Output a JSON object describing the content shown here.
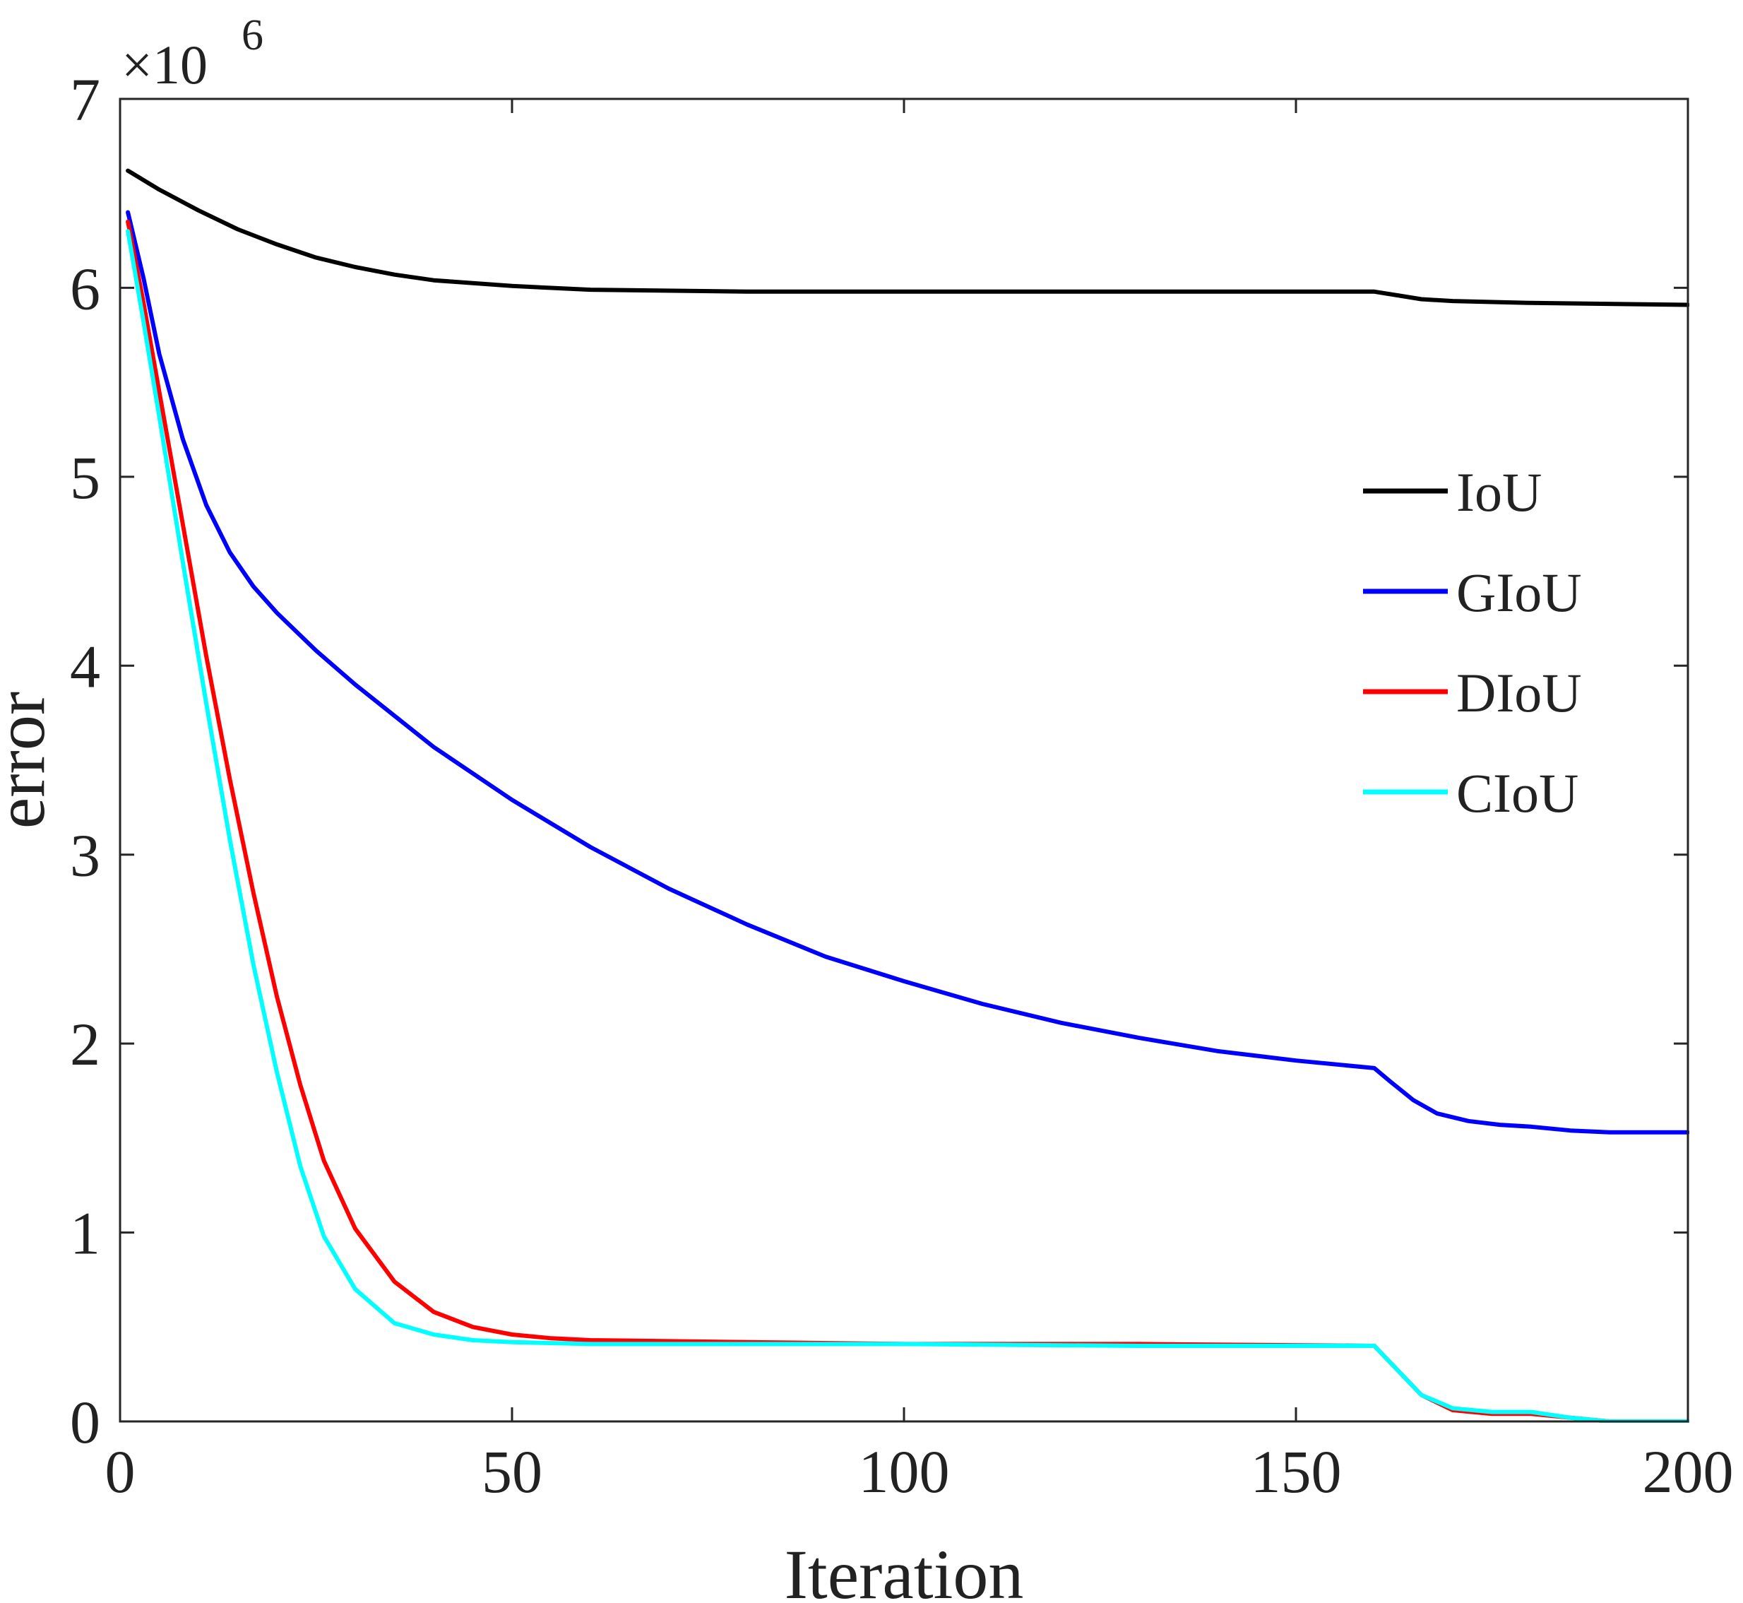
{
  "chart_data": {
    "type": "line",
    "title": "",
    "xlabel": "Iteration",
    "ylabel": "error",
    "y_multiplier": {
      "prefix": "×10",
      "exponent": "6"
    },
    "xlim": [
      0,
      200
    ],
    "ylim": [
      0,
      7
    ],
    "x_ticks": [
      0,
      50,
      100,
      150,
      200
    ],
    "y_ticks": [
      0,
      1,
      2,
      3,
      4,
      5,
      6,
      7
    ],
    "grid": false,
    "legend_position": "right",
    "series": [
      {
        "name": "IoU",
        "color": "#000000",
        "points": [
          [
            1,
            6.62
          ],
          [
            5,
            6.52
          ],
          [
            10,
            6.41
          ],
          [
            15,
            6.31
          ],
          [
            20,
            6.23
          ],
          [
            25,
            6.16
          ],
          [
            30,
            6.11
          ],
          [
            35,
            6.07
          ],
          [
            40,
            6.04
          ],
          [
            50,
            6.01
          ],
          [
            60,
            5.99
          ],
          [
            80,
            5.98
          ],
          [
            100,
            5.98
          ],
          [
            130,
            5.98
          ],
          [
            160,
            5.98
          ],
          [
            163,
            5.96
          ],
          [
            166,
            5.94
          ],
          [
            170,
            5.93
          ],
          [
            180,
            5.92
          ],
          [
            200,
            5.91
          ]
        ]
      },
      {
        "name": "GIoU",
        "color": "#0000ff",
        "points": [
          [
            1,
            6.4
          ],
          [
            3,
            6.05
          ],
          [
            5,
            5.65
          ],
          [
            8,
            5.2
          ],
          [
            11,
            4.85
          ],
          [
            14,
            4.6
          ],
          [
            17,
            4.42
          ],
          [
            20,
            4.28
          ],
          [
            25,
            4.08
          ],
          [
            30,
            3.9
          ],
          [
            40,
            3.57
          ],
          [
            50,
            3.29
          ],
          [
            60,
            3.04
          ],
          [
            70,
            2.82
          ],
          [
            80,
            2.63
          ],
          [
            90,
            2.46
          ],
          [
            100,
            2.33
          ],
          [
            110,
            2.21
          ],
          [
            120,
            2.11
          ],
          [
            130,
            2.03
          ],
          [
            140,
            1.96
          ],
          [
            150,
            1.91
          ],
          [
            160,
            1.87
          ],
          [
            162,
            1.8
          ],
          [
            165,
            1.7
          ],
          [
            168,
            1.63
          ],
          [
            172,
            1.59
          ],
          [
            176,
            1.57
          ],
          [
            180,
            1.56
          ],
          [
            185,
            1.54
          ],
          [
            190,
            1.53
          ],
          [
            200,
            1.53
          ]
        ]
      },
      {
        "name": "DIoU",
        "color": "#ff0000",
        "points": [
          [
            1,
            6.35
          ],
          [
            3,
            5.92
          ],
          [
            5,
            5.45
          ],
          [
            8,
            4.75
          ],
          [
            11,
            4.05
          ],
          [
            14,
            3.4
          ],
          [
            17,
            2.8
          ],
          [
            20,
            2.25
          ],
          [
            23,
            1.78
          ],
          [
            26,
            1.38
          ],
          [
            30,
            1.02
          ],
          [
            35,
            0.74
          ],
          [
            40,
            0.58
          ],
          [
            45,
            0.5
          ],
          [
            50,
            0.46
          ],
          [
            55,
            0.44
          ],
          [
            60,
            0.43
          ],
          [
            80,
            0.42
          ],
          [
            100,
            0.41
          ],
          [
            130,
            0.41
          ],
          [
            160,
            0.4
          ],
          [
            163,
            0.27
          ],
          [
            166,
            0.14
          ],
          [
            170,
            0.06
          ],
          [
            175,
            0.04
          ],
          [
            180,
            0.04
          ],
          [
            185,
            0.02
          ],
          [
            190,
            0.0
          ],
          [
            200,
            0.0
          ]
        ]
      },
      {
        "name": "CIoU",
        "color": "#00ffff",
        "points": [
          [
            1,
            6.3
          ],
          [
            3,
            5.82
          ],
          [
            5,
            5.32
          ],
          [
            8,
            4.55
          ],
          [
            11,
            3.8
          ],
          [
            14,
            3.08
          ],
          [
            17,
            2.42
          ],
          [
            20,
            1.85
          ],
          [
            23,
            1.35
          ],
          [
            26,
            0.98
          ],
          [
            30,
            0.7
          ],
          [
            35,
            0.52
          ],
          [
            40,
            0.46
          ],
          [
            45,
            0.43
          ],
          [
            50,
            0.42
          ],
          [
            60,
            0.41
          ],
          [
            80,
            0.41
          ],
          [
            100,
            0.41
          ],
          [
            130,
            0.4
          ],
          [
            160,
            0.4
          ],
          [
            163,
            0.27
          ],
          [
            166,
            0.14
          ],
          [
            170,
            0.07
          ],
          [
            175,
            0.05
          ],
          [
            180,
            0.05
          ],
          [
            185,
            0.02
          ],
          [
            190,
            0.0
          ],
          [
            200,
            0.0
          ]
        ]
      }
    ]
  }
}
